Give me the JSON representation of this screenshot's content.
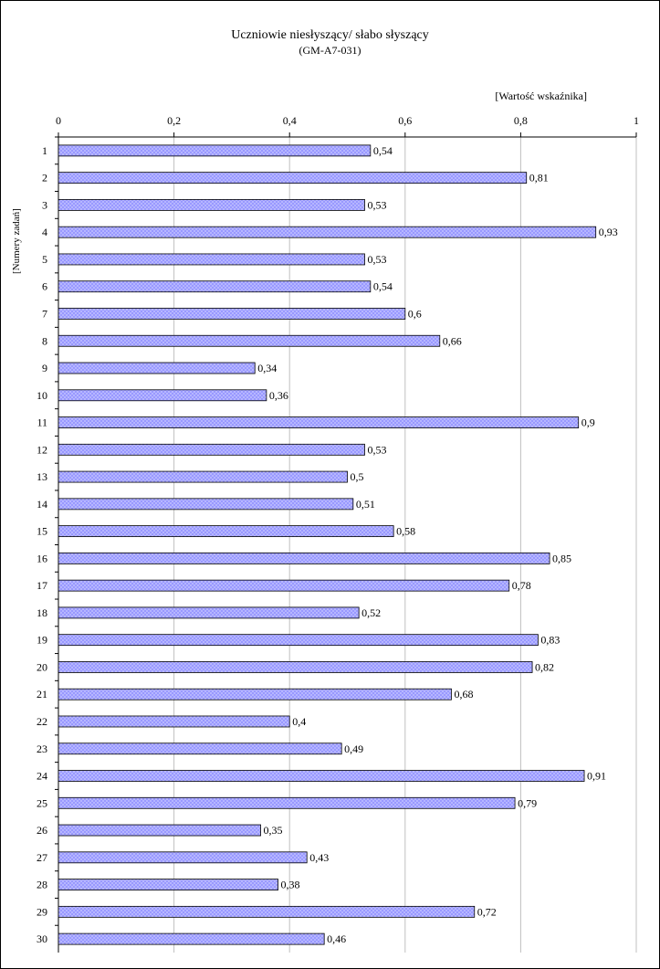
{
  "chart_data": {
    "type": "bar",
    "orientation": "horizontal",
    "title": "Uczniowie niesłyszący/ słabo słyszący",
    "subtitle": "(GM-A7-031)",
    "xlabel": "[Wartość wskaźnika]",
    "ylabel": "[Numery zadań]",
    "xlim": [
      0,
      1
    ],
    "x_ticks": [
      "0",
      "0,2",
      "0,4",
      "0,6",
      "0,8",
      "1"
    ],
    "x_tick_values": [
      0,
      0.2,
      0.4,
      0.6,
      0.8,
      1
    ],
    "grid": true,
    "categories": [
      "1",
      "2",
      "3",
      "4",
      "5",
      "6",
      "7",
      "8",
      "9",
      "10",
      "11",
      "12",
      "13",
      "14",
      "15",
      "16",
      "17",
      "18",
      "19",
      "20",
      "21",
      "22",
      "23",
      "24",
      "25",
      "26",
      "27",
      "28",
      "29",
      "30"
    ],
    "values": [
      0.54,
      0.81,
      0.53,
      0.93,
      0.53,
      0.54,
      0.6,
      0.66,
      0.34,
      0.36,
      0.9,
      0.53,
      0.5,
      0.51,
      0.58,
      0.85,
      0.78,
      0.52,
      0.83,
      0.82,
      0.68,
      0.4,
      0.49,
      0.91,
      0.79,
      0.35,
      0.43,
      0.38,
      0.72,
      0.46
    ],
    "value_labels": [
      "0,54",
      "0,81",
      "0,53",
      "0,93",
      "0,53",
      "0,54",
      "0,6",
      "0,66",
      "0,34",
      "0,36",
      "0,9",
      "0,53",
      "0,5",
      "0,51",
      "0,58",
      "0,85",
      "0,78",
      "0,52",
      "0,83",
      "0,82",
      "0,68",
      "0,4",
      "0,49",
      "0,91",
      "0,79",
      "0,35",
      "0,43",
      "0,38",
      "0,72",
      "0,46"
    ],
    "bar_color": "#9999ff"
  }
}
